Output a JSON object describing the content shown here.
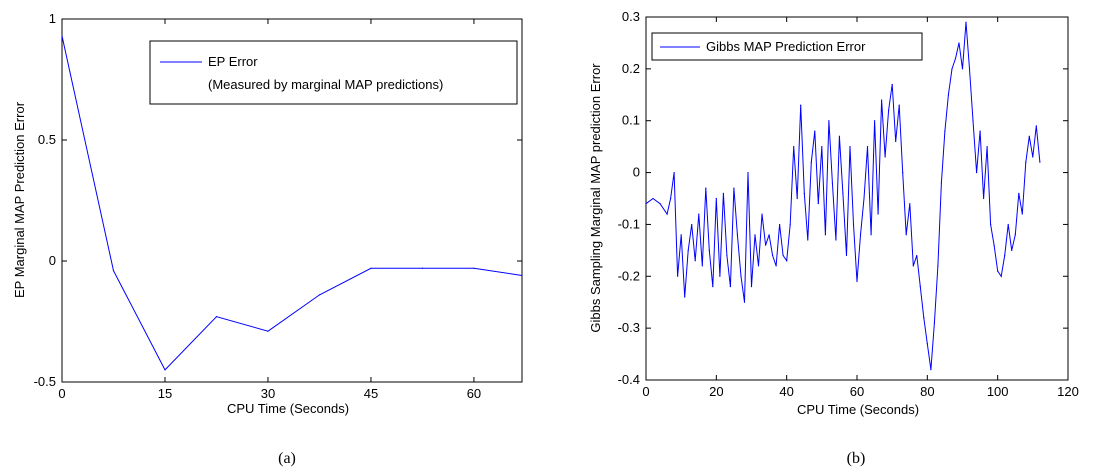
{
  "chart_data": [
    {
      "type": "line",
      "caption": "(a)",
      "xlabel": "CPU Time (Seconds)",
      "ylabel": "EP Marginal MAP Prediction Error",
      "xlim": [
        0,
        67
      ],
      "ylim": [
        -0.5,
        1
      ],
      "xticks": [
        0,
        15,
        30,
        45,
        60
      ],
      "yticks": [
        -0.5,
        0,
        0.5,
        1
      ],
      "xtick_labels": [
        "0",
        "15",
        "30",
        "45",
        "60"
      ],
      "ytick_labels": [
        "-0.5",
        "0",
        "0.5",
        "1"
      ],
      "grid": false,
      "legend": {
        "placement": "top-right",
        "entries": [
          "EP Error",
          "(Measured by marginal MAP predictions)"
        ]
      },
      "series": [
        {
          "name": "EP Error",
          "color": "#0000ff",
          "x": [
            0,
            7.5,
            15,
            22.5,
            30,
            37.5,
            45,
            52.5,
            60,
            67
          ],
          "y": [
            0.93,
            -0.04,
            -0.45,
            -0.23,
            -0.29,
            -0.14,
            -0.03,
            -0.03,
            -0.03,
            -0.06
          ]
        }
      ]
    },
    {
      "type": "line",
      "caption": "(b)",
      "xlabel": "CPU Time (Seconds)",
      "ylabel": "Gibbs Sampling Marginal MAP prediction Error",
      "xlim": [
        0,
        120
      ],
      "ylim": [
        -0.4,
        0.3
      ],
      "xticks": [
        0,
        20,
        40,
        60,
        80,
        100,
        120
      ],
      "yticks": [
        -0.4,
        -0.3,
        -0.2,
        -0.1,
        0,
        0.1,
        0.2,
        0.3
      ],
      "xtick_labels": [
        "0",
        "20",
        "40",
        "60",
        "80",
        "100",
        "120"
      ],
      "ytick_labels": [
        "-0.4",
        "-0.3",
        "-0.2",
        "-0.1",
        "0",
        "0.1",
        "0.2",
        "0.3"
      ],
      "grid": false,
      "legend": {
        "placement": "top-left",
        "entries": [
          "Gibbs MAP Prediction Error"
        ]
      },
      "series": [
        {
          "name": "Gibbs MAP Prediction Error",
          "color": "#0000ff",
          "x": [
            0,
            2,
            4,
            6,
            7,
            8,
            9,
            10,
            11,
            12,
            13,
            14,
            15,
            16,
            17,
            18,
            19,
            20,
            21,
            22,
            23,
            24,
            25,
            26,
            27,
            28,
            29,
            30,
            31,
            32,
            33,
            34,
            35,
            36,
            37,
            38,
            39,
            40,
            41,
            42,
            43,
            44,
            45,
            46,
            47,
            48,
            49,
            50,
            51,
            52,
            53,
            54,
            55,
            56,
            57,
            58,
            59,
            60,
            61,
            62,
            63,
            64,
            65,
            66,
            67,
            68,
            69,
            70,
            71,
            72,
            73,
            74,
            75,
            76,
            77,
            78,
            79,
            80,
            81,
            82,
            83,
            84,
            85,
            86,
            87,
            88,
            89,
            90,
            91,
            92,
            93,
            94,
            95,
            96,
            97,
            98,
            99,
            100,
            101,
            102,
            103,
            104,
            105,
            106,
            107,
            108,
            109,
            110,
            111,
            112
          ],
          "y": [
            -0.06,
            -0.05,
            -0.06,
            -0.08,
            -0.05,
            0.0,
            -0.2,
            -0.12,
            -0.24,
            -0.15,
            -0.1,
            -0.17,
            -0.08,
            -0.18,
            -0.03,
            -0.15,
            -0.22,
            -0.05,
            -0.2,
            -0.04,
            -0.16,
            -0.22,
            -0.03,
            -0.12,
            -0.2,
            -0.25,
            0.0,
            -0.22,
            -0.12,
            -0.18,
            -0.08,
            -0.14,
            -0.12,
            -0.16,
            -0.18,
            -0.1,
            -0.16,
            -0.17,
            -0.1,
            0.05,
            -0.05,
            0.13,
            -0.04,
            -0.13,
            0.02,
            0.08,
            -0.06,
            0.05,
            -0.12,
            0.1,
            -0.02,
            -0.13,
            0.07,
            -0.04,
            -0.16,
            0.05,
            -0.1,
            -0.21,
            -0.12,
            -0.05,
            0.05,
            -0.12,
            0.1,
            -0.08,
            0.14,
            0.03,
            0.12,
            0.17,
            0.06,
            0.13,
            0.0,
            -0.12,
            -0.06,
            -0.18,
            -0.16,
            -0.22,
            -0.28,
            -0.33,
            -0.38,
            -0.29,
            -0.18,
            -0.02,
            0.08,
            0.15,
            0.2,
            0.22,
            0.25,
            0.2,
            0.29,
            0.2,
            0.1,
            0.0,
            0.08,
            -0.05,
            0.05,
            -0.1,
            -0.14,
            -0.19,
            -0.2,
            -0.16,
            -0.1,
            -0.15,
            -0.12,
            -0.04,
            -0.08,
            0.02,
            0.07,
            0.03,
            0.09,
            0.02
          ]
        }
      ]
    }
  ]
}
